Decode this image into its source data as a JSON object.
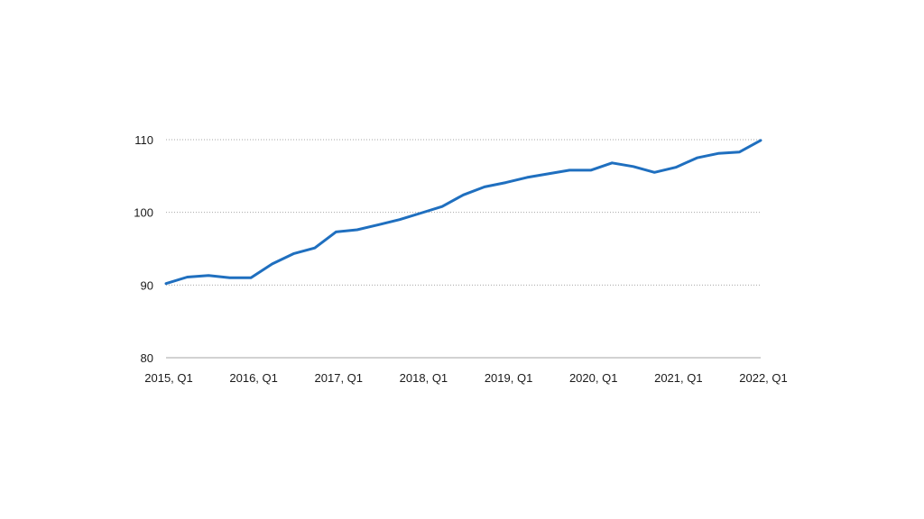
{
  "chart_data": {
    "type": "line",
    "title": "",
    "xlabel": "",
    "ylabel": "",
    "ylim": [
      80,
      110
    ],
    "yticks": [
      80,
      90,
      100,
      110
    ],
    "grid": true,
    "colors": {
      "series": "#1f6fbf",
      "grid": "#a6a6a6"
    },
    "x": [
      "2015, Q1",
      "2015, Q2",
      "2015, Q3",
      "2015, Q4",
      "2016, Q1",
      "2016, Q2",
      "2016, Q3",
      "2016, Q4",
      "2017, Q1",
      "2017, Q2",
      "2017, Q3",
      "2017, Q4",
      "2018, Q1",
      "2018, Q2",
      "2018, Q3",
      "2018, Q4",
      "2019, Q1",
      "2019, Q2",
      "2019, Q3",
      "2019, Q4",
      "2020, Q1",
      "2020, Q2",
      "2020, Q3",
      "2020, Q4",
      "2021, Q1",
      "2021, Q2",
      "2021, Q3",
      "2021, Q4",
      "2022, Q1"
    ],
    "xtick_labels": [
      "2015, Q1",
      "2016, Q1",
      "2017, Q1",
      "2018, Q1",
      "2019, Q1",
      "2020, Q1",
      "2021, Q1",
      "2022, Q1"
    ],
    "series": [
      {
        "values": [
          90.2,
          91.1,
          91.3,
          91.0,
          91.0,
          92.9,
          94.3,
          95.1,
          97.3,
          97.6,
          98.3,
          99.0,
          99.9,
          100.8,
          102.4,
          103.5,
          104.1,
          104.8,
          105.3,
          105.8,
          105.8,
          106.8,
          106.3,
          105.5,
          106.2,
          107.5,
          108.1,
          108.3,
          109.9
        ]
      }
    ]
  }
}
